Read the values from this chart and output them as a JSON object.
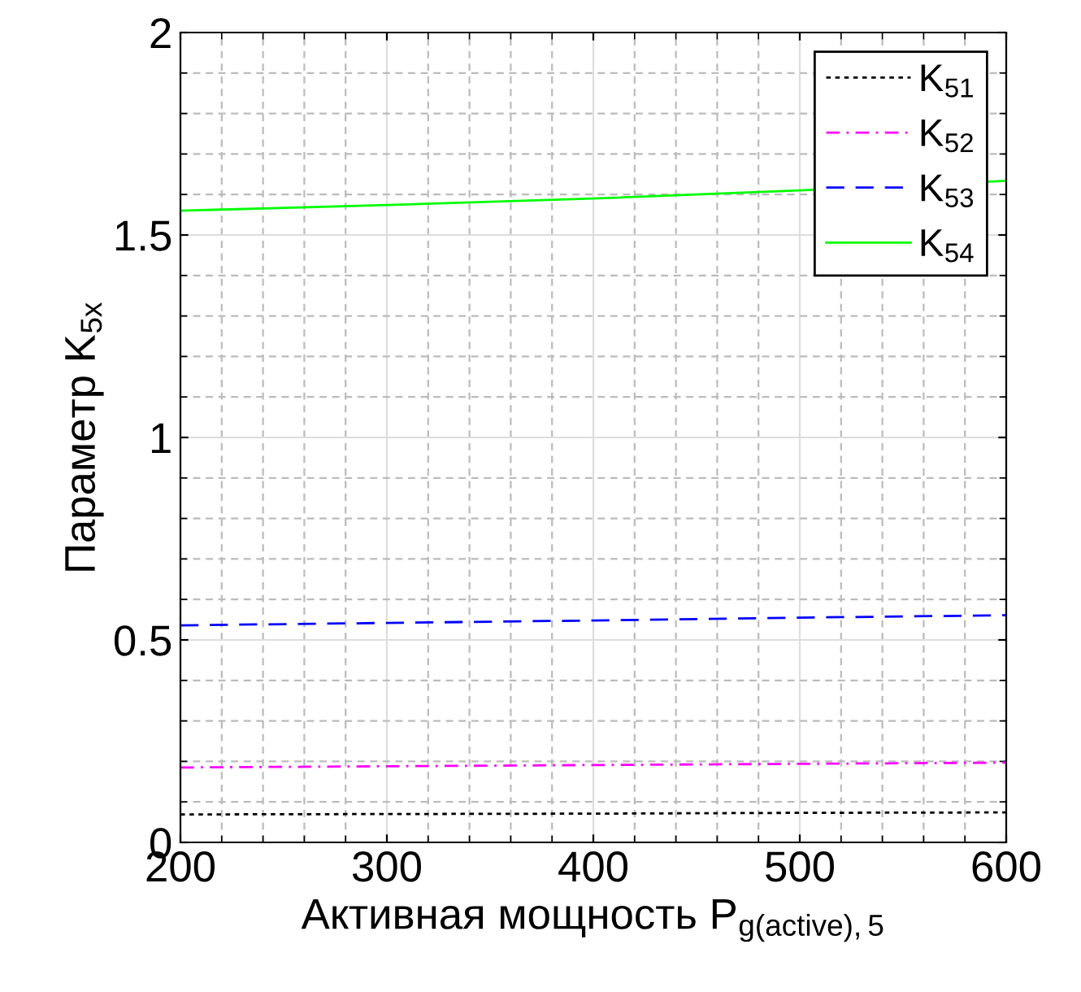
{
  "chart_data": {
    "type": "line",
    "xlabel": "Активная мощность P$_{g(active),5}$",
    "ylabel": "Параметр K$_{5x}$",
    "x": [
      200,
      300,
      400,
      500,
      600
    ],
    "series": [
      {
        "name": "K$_{51}$",
        "color": "#000000",
        "line_style": "dotted",
        "values": [
          0.069,
          0.07,
          0.071,
          0.073,
          0.074
        ]
      },
      {
        "name": "K$_{52}$",
        "color": "#ff00ff",
        "line_style": "dashdot",
        "values": [
          0.185,
          0.188,
          0.191,
          0.194,
          0.197
        ]
      },
      {
        "name": "K$_{53}$",
        "color": "#0000ff",
        "line_style": "dashed",
        "values": [
          0.536,
          0.542,
          0.548,
          0.555,
          0.561
        ]
      },
      {
        "name": "K$_{54}$",
        "color": "#00ff00",
        "line_style": "solid",
        "values": [
          1.56,
          1.574,
          1.59,
          1.61,
          1.634
        ]
      }
    ],
    "xlim": [
      200,
      600
    ],
    "ylim": [
      0,
      2
    ],
    "xticks": [
      200,
      300,
      400,
      500,
      600
    ],
    "yticks": [
      0,
      0.5,
      1,
      1.5,
      2
    ],
    "grid": true,
    "legend": "top right",
    "marker": "none"
  }
}
